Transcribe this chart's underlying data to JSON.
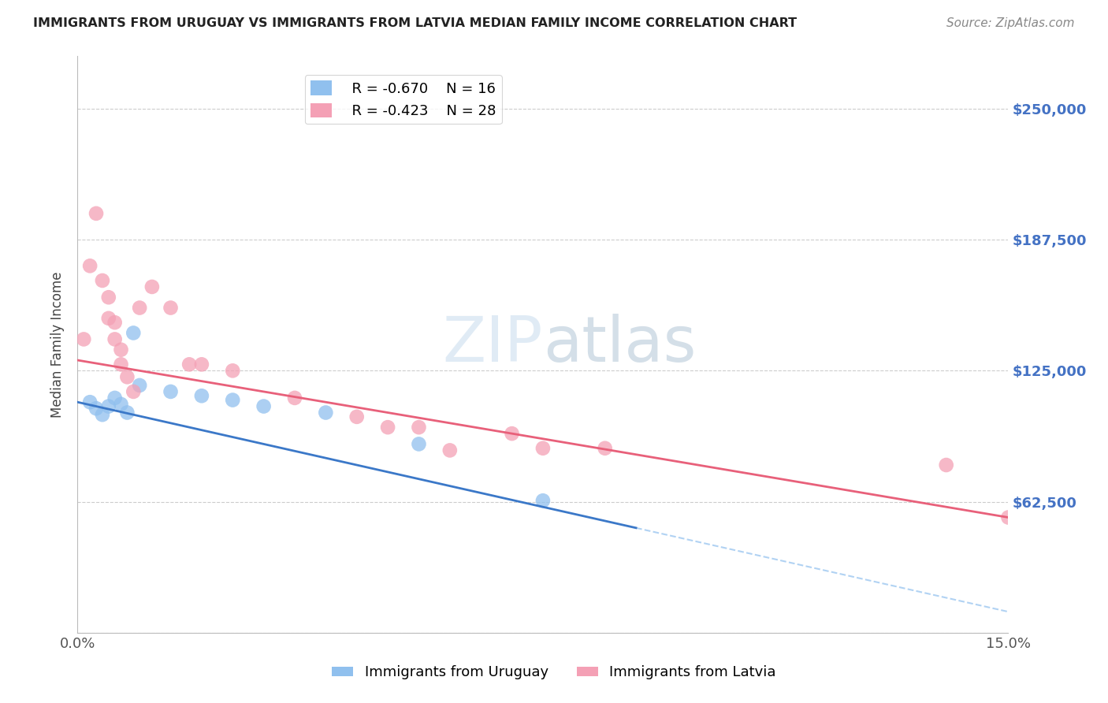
{
  "title": "IMMIGRANTS FROM URUGUAY VS IMMIGRANTS FROM LATVIA MEDIAN FAMILY INCOME CORRELATION CHART",
  "source": "Source: ZipAtlas.com",
  "ylabel": "Median Family Income",
  "x_min": 0.0,
  "x_max": 0.15,
  "y_min": 0,
  "y_max": 275000,
  "yticks": [
    0,
    62500,
    125000,
    187500,
    250000
  ],
  "ytick_labels": [
    "",
    "$62,500",
    "$125,000",
    "$187,500",
    "$250,000"
  ],
  "xticks": [
    0.0,
    0.03,
    0.06,
    0.09,
    0.12,
    0.15
  ],
  "xtick_labels": [
    "0.0%",
    "",
    "",
    "",
    "",
    "15.0%"
  ],
  "legend_uruguay_r": "R = -0.670",
  "legend_uruguay_n": "N = 16",
  "legend_latvia_r": "R = -0.423",
  "legend_latvia_n": "N = 28",
  "color_uruguay": "#90C0EE",
  "color_latvia": "#F4A0B5",
  "color_line_uruguay": "#3B78C8",
  "color_line_latvia": "#E8607A",
  "color_ytick_labels": "#4472C4",
  "background_color": "#FFFFFF",
  "grid_color": "#CCCCCC",
  "uruguay_x": [
    0.002,
    0.003,
    0.004,
    0.005,
    0.006,
    0.007,
    0.008,
    0.009,
    0.01,
    0.015,
    0.02,
    0.025,
    0.03,
    0.04,
    0.055,
    0.075
  ],
  "uruguay_y": [
    110000,
    107000,
    104000,
    108000,
    112000,
    109000,
    105000,
    143000,
    118000,
    115000,
    113000,
    111000,
    108000,
    105000,
    90000,
    63000
  ],
  "latvia_x": [
    0.001,
    0.002,
    0.003,
    0.004,
    0.005,
    0.005,
    0.006,
    0.006,
    0.007,
    0.007,
    0.008,
    0.009,
    0.01,
    0.012,
    0.015,
    0.018,
    0.02,
    0.025,
    0.035,
    0.045,
    0.05,
    0.055,
    0.06,
    0.07,
    0.075,
    0.085,
    0.14,
    0.15
  ],
  "latvia_y": [
    140000,
    175000,
    200000,
    168000,
    160000,
    150000,
    148000,
    140000,
    135000,
    128000,
    122000,
    115000,
    155000,
    165000,
    155000,
    128000,
    128000,
    125000,
    112000,
    103000,
    98000,
    98000,
    87000,
    95000,
    88000,
    88000,
    80000,
    55000
  ]
}
